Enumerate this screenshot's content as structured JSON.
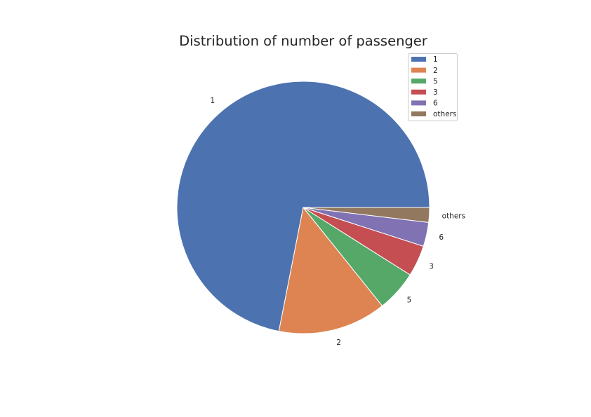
{
  "chart_data": {
    "type": "pie",
    "title": "Distribution of number of passenger",
    "categories": [
      "1",
      "2",
      "5",
      "3",
      "6",
      "others"
    ],
    "values": [
      72.2,
      13.9,
      5.3,
      4.0,
      3.1,
      1.9
    ],
    "colors": [
      "#4c72b0",
      "#dd8452",
      "#55a868",
      "#c44e52",
      "#8172b3",
      "#937860"
    ],
    "legend": {
      "placement": "top-right",
      "entries": [
        "1",
        "2",
        "5",
        "3",
        "6",
        "others"
      ]
    }
  }
}
